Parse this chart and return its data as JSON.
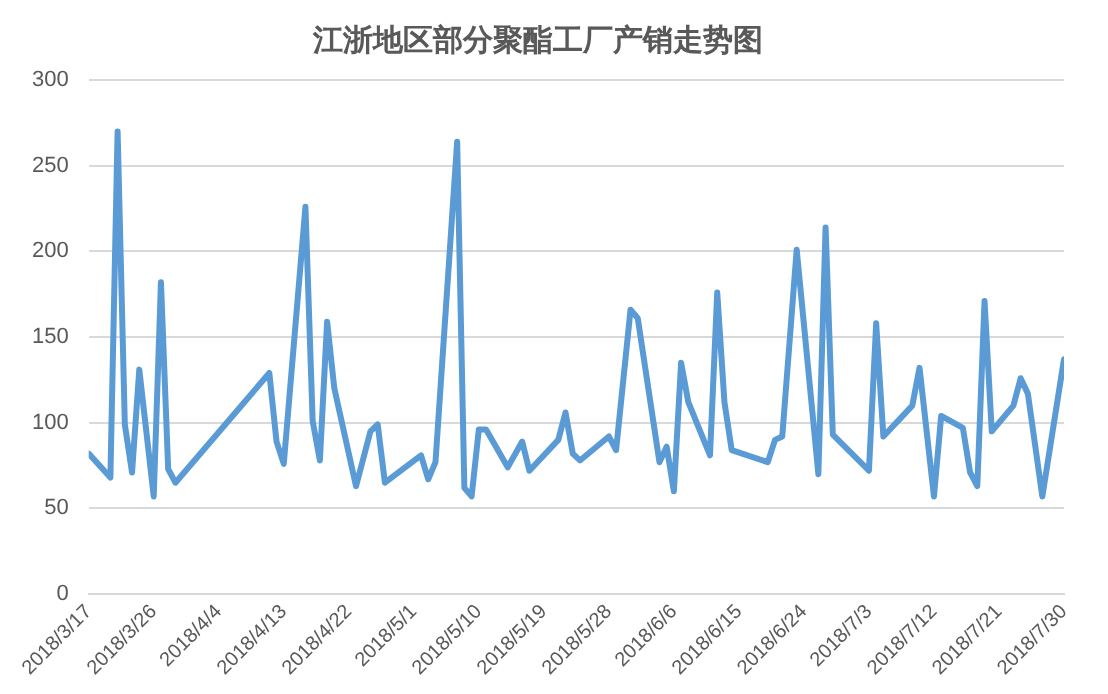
{
  "chart_data": {
    "type": "line",
    "title": "江浙地区部分聚酯工厂产销走势图",
    "x": [
      "2018-03-17",
      "2018-03-20",
      "2018-03-21",
      "2018-03-22",
      "2018-03-23",
      "2018-03-24",
      "2018-03-26",
      "2018-03-27",
      "2018-03-28",
      "2018-03-29",
      "2018-04-11",
      "2018-04-12",
      "2018-04-13",
      "2018-04-16",
      "2018-04-17",
      "2018-04-18",
      "2018-04-19",
      "2018-04-20",
      "2018-04-23",
      "2018-04-25",
      "2018-04-26",
      "2018-04-27",
      "2018-05-02",
      "2018-05-03",
      "2018-05-04",
      "2018-05-07",
      "2018-05-08",
      "2018-05-09",
      "2018-05-10",
      "2018-05-11",
      "2018-05-14",
      "2018-05-16",
      "2018-05-17",
      "2018-05-21",
      "2018-05-22",
      "2018-05-23",
      "2018-05-24",
      "2018-05-28",
      "2018-05-29",
      "2018-05-31",
      "2018-06-01",
      "2018-06-04",
      "2018-06-05",
      "2018-06-06",
      "2018-06-07",
      "2018-06-08",
      "2018-06-11",
      "2018-06-12",
      "2018-06-13",
      "2018-06-14",
      "2018-06-19",
      "2018-06-20",
      "2018-06-21",
      "2018-06-23",
      "2018-06-26",
      "2018-06-27",
      "2018-06-28",
      "2018-07-03",
      "2018-07-04",
      "2018-07-05",
      "2018-07-09",
      "2018-07-10",
      "2018-07-12",
      "2018-07-13",
      "2018-07-16",
      "2018-07-17",
      "2018-07-18",
      "2018-07-19",
      "2018-07-20",
      "2018-07-23",
      "2018-07-24",
      "2018-07-25",
      "2018-07-27",
      "2018-07-30"
    ],
    "series": [
      {
        "color": "#5b9bd5",
        "values": [
          82,
          68,
          270,
          99,
          71,
          131,
          57,
          182,
          73,
          65,
          129,
          89,
          76,
          226,
          101,
          78,
          159,
          120,
          63,
          95,
          99,
          65,
          81,
          67,
          77,
          264,
          62,
          57,
          96,
          96,
          74,
          89,
          72,
          90,
          106,
          82,
          78,
          92,
          84,
          166,
          161,
          77,
          86,
          60,
          135,
          112,
          81,
          176,
          112,
          84,
          77,
          90,
          92,
          201,
          70,
          214,
          93,
          72,
          158,
          92,
          110,
          132,
          57,
          104,
          97,
          71,
          63,
          171,
          95,
          110,
          126,
          117,
          57,
          137
        ]
      }
    ],
    "xlim": [
      "2018-03-17",
      "2018-07-30"
    ],
    "xticks": [
      {
        "value": "2018-03-17",
        "label": "2018/3/17"
      },
      {
        "value": "2018-03-26",
        "label": "2018/3/26"
      },
      {
        "value": "2018-04-04",
        "label": "2018/4/4"
      },
      {
        "value": "2018-04-13",
        "label": "2018/4/13"
      },
      {
        "value": "2018-04-22",
        "label": "2018/4/22"
      },
      {
        "value": "2018-05-01",
        "label": "2018/5/1"
      },
      {
        "value": "2018-05-10",
        "label": "2018/5/10"
      },
      {
        "value": "2018-05-19",
        "label": "2018/5/19"
      },
      {
        "value": "2018-05-28",
        "label": "2018/5/28"
      },
      {
        "value": "2018-06-06",
        "label": "2018/6/6"
      },
      {
        "value": "2018-06-15",
        "label": "2018/6/15"
      },
      {
        "value": "2018-06-24",
        "label": "2018/6/24"
      },
      {
        "value": "2018-07-03",
        "label": "2018/7/3"
      },
      {
        "value": "2018-07-12",
        "label": "2018/7/12"
      },
      {
        "value": "2018-07-21",
        "label": "2018/7/21"
      },
      {
        "value": "2018-07-30",
        "label": "2018/7/30"
      }
    ],
    "ylim": [
      0,
      300
    ],
    "yticks": [
      0,
      50,
      100,
      150,
      200,
      250,
      300
    ],
    "grid": "y",
    "legend": false,
    "marker": "none",
    "line_style": "solid"
  }
}
